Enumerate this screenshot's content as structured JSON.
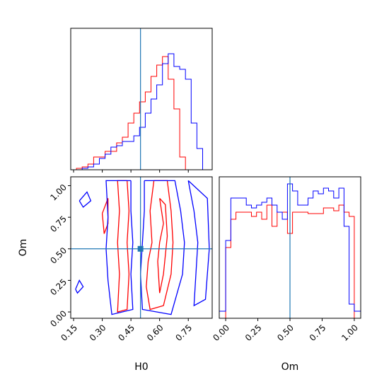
{
  "chart_data": [
    {
      "type": "step-histogram",
      "panel": "H0 marginal",
      "xlabel": "H0",
      "xlim": [
        0.135,
        0.875
      ],
      "truth": 0.5,
      "bins": [
        0.135,
        0.165,
        0.195,
        0.225,
        0.255,
        0.285,
        0.315,
        0.345,
        0.375,
        0.405,
        0.435,
        0.465,
        0.495,
        0.525,
        0.555,
        0.585,
        0.615,
        0.645,
        0.675,
        0.705,
        0.735,
        0.765,
        0.795,
        0.825,
        0.855,
        0.875
      ],
      "series": [
        {
          "color": "#ff0000",
          "values": [
            0.0,
            0.01,
            0.02,
            0.04,
            0.09,
            0.09,
            0.13,
            0.13,
            0.19,
            0.23,
            0.33,
            0.4,
            0.48,
            0.55,
            0.66,
            0.74,
            0.8,
            0.64,
            0.43,
            0.09,
            0.0,
            0.0,
            0.0,
            0.0,
            0.0
          ]
        },
        {
          "color": "#0000ff",
          "values": [
            0.0,
            0.0,
            0.01,
            0.02,
            0.04,
            0.08,
            0.11,
            0.16,
            0.17,
            0.2,
            0.2,
            0.24,
            0.3,
            0.4,
            0.5,
            0.6,
            0.75,
            0.82,
            0.73,
            0.71,
            0.64,
            0.33,
            0.15,
            0.0,
            0.0
          ]
        }
      ]
    },
    {
      "type": "contour",
      "panel": "H0 vs Om",
      "xlabel": "H0",
      "ylabel": "Om",
      "xlim": [
        0.135,
        0.875
      ],
      "ylim": [
        -0.05,
        1.07
      ],
      "xticks": [
        "0.15",
        "0.30",
        "0.45",
        "0.60",
        "0.75"
      ],
      "yticks": [
        "0.00",
        "0.25",
        "0.50",
        "0.75",
        "1.00"
      ],
      "truth": [
        0.5,
        0.5
      ],
      "series": [
        {
          "color": "#ff0000",
          "contours": [
            [
              [
                0.43,
                1.04
              ],
              [
                0.44,
                0.8
              ],
              [
                0.43,
                0.55
              ],
              [
                0.44,
                0.3
              ],
              [
                0.43,
                0.02
              ],
              [
                0.38,
                0.0
              ],
              [
                0.39,
                0.3
              ],
              [
                0.38,
                0.55
              ],
              [
                0.39,
                0.8
              ],
              [
                0.38,
                1.04
              ],
              [
                0.43,
                1.04
              ]
            ],
            [
              [
                0.57,
                1.04
              ],
              [
                0.55,
                0.8
              ],
              [
                0.56,
                0.55
              ],
              [
                0.54,
                0.4
              ],
              [
                0.53,
                0.2
              ],
              [
                0.55,
                0.02
              ],
              [
                0.62,
                0.05
              ],
              [
                0.66,
                0.3
              ],
              [
                0.67,
                0.55
              ],
              [
                0.66,
                0.8
              ],
              [
                0.64,
                1.04
              ],
              [
                0.57,
                1.04
              ]
            ],
            [
              [
                0.3,
                0.78
              ],
              [
                0.33,
                0.9
              ],
              [
                0.33,
                0.7
              ],
              [
                0.31,
                0.62
              ],
              [
                0.3,
                0.78
              ]
            ],
            [
              [
                0.6,
                0.9
              ],
              [
                0.62,
                0.7
              ],
              [
                0.6,
                0.55
              ],
              [
                0.59,
                0.4
              ],
              [
                0.6,
                0.15
              ],
              [
                0.62,
                0.3
              ],
              [
                0.64,
                0.6
              ],
              [
                0.63,
                0.85
              ],
              [
                0.6,
                0.9
              ]
            ]
          ]
        },
        {
          "color": "#0000ff",
          "contours": [
            [
              [
                0.45,
                1.04
              ],
              [
                0.45,
                0.8
              ],
              [
                0.46,
                0.55
              ],
              [
                0.45,
                0.3
              ],
              [
                0.46,
                0.02
              ],
              [
                0.35,
                -0.02
              ],
              [
                0.33,
                0.25
              ],
              [
                0.32,
                0.5
              ],
              [
                0.33,
                0.75
              ],
              [
                0.32,
                1.04
              ],
              [
                0.45,
                1.04
              ]
            ],
            [
              [
                0.52,
                1.04
              ],
              [
                0.52,
                0.8
              ],
              [
                0.51,
                0.55
              ],
              [
                0.5,
                0.3
              ],
              [
                0.51,
                0.02
              ],
              [
                0.66,
                -0.02
              ],
              [
                0.72,
                0.3
              ],
              [
                0.73,
                0.55
              ],
              [
                0.71,
                0.8
              ],
              [
                0.68,
                1.04
              ],
              [
                0.52,
                1.04
              ]
            ],
            [
              [
                0.18,
                0.88
              ],
              [
                0.22,
                0.95
              ],
              [
                0.24,
                0.88
              ],
              [
                0.2,
                0.83
              ],
              [
                0.18,
                0.88
              ]
            ],
            [
              [
                0.16,
                0.18
              ],
              [
                0.18,
                0.25
              ],
              [
                0.2,
                0.2
              ],
              [
                0.17,
                0.15
              ],
              [
                0.16,
                0.18
              ]
            ],
            [
              [
                0.75,
                1.04
              ],
              [
                0.78,
                0.8
              ],
              [
                0.8,
                0.55
              ],
              [
                0.79,
                0.3
              ],
              [
                0.78,
                0.05
              ],
              [
                0.84,
                0.1
              ],
              [
                0.86,
                0.5
              ],
              [
                0.85,
                0.9
              ],
              [
                0.75,
                1.04
              ]
            ]
          ]
        }
      ]
    },
    {
      "type": "step-histogram",
      "panel": "Om marginal",
      "xlabel": "Om",
      "xlim": [
        -0.05,
        1.05
      ],
      "xticks": [
        "0.00",
        "0.25",
        "0.50",
        "0.75",
        "1.00"
      ],
      "truth": 0.5,
      "bins": [
        -0.05,
        0.0,
        0.04,
        0.08,
        0.12,
        0.16,
        0.2,
        0.24,
        0.28,
        0.32,
        0.36,
        0.4,
        0.44,
        0.48,
        0.52,
        0.56,
        0.6,
        0.64,
        0.68,
        0.72,
        0.76,
        0.8,
        0.84,
        0.88,
        0.92,
        0.96,
        1.0,
        1.05
      ],
      "series": [
        {
          "color": "#ff0000",
          "values": [
            0.0,
            0.5,
            0.7,
            0.75,
            0.75,
            0.75,
            0.72,
            0.75,
            0.7,
            0.8,
            0.65,
            0.75,
            0.75,
            0.6,
            0.75,
            0.75,
            0.75,
            0.74,
            0.74,
            0.74,
            0.78,
            0.78,
            0.76,
            0.8,
            0.75,
            0.72,
            0.0
          ]
        },
        {
          "color": "#0000ff",
          "values": [
            0.05,
            0.55,
            0.85,
            0.85,
            0.85,
            0.8,
            0.78,
            0.8,
            0.82,
            0.85,
            0.8,
            0.75,
            0.7,
            0.95,
            0.9,
            0.8,
            0.8,
            0.85,
            0.9,
            0.88,
            0.92,
            0.9,
            0.85,
            0.92,
            0.65,
            0.1,
            0.05
          ]
        }
      ]
    }
  ]
}
